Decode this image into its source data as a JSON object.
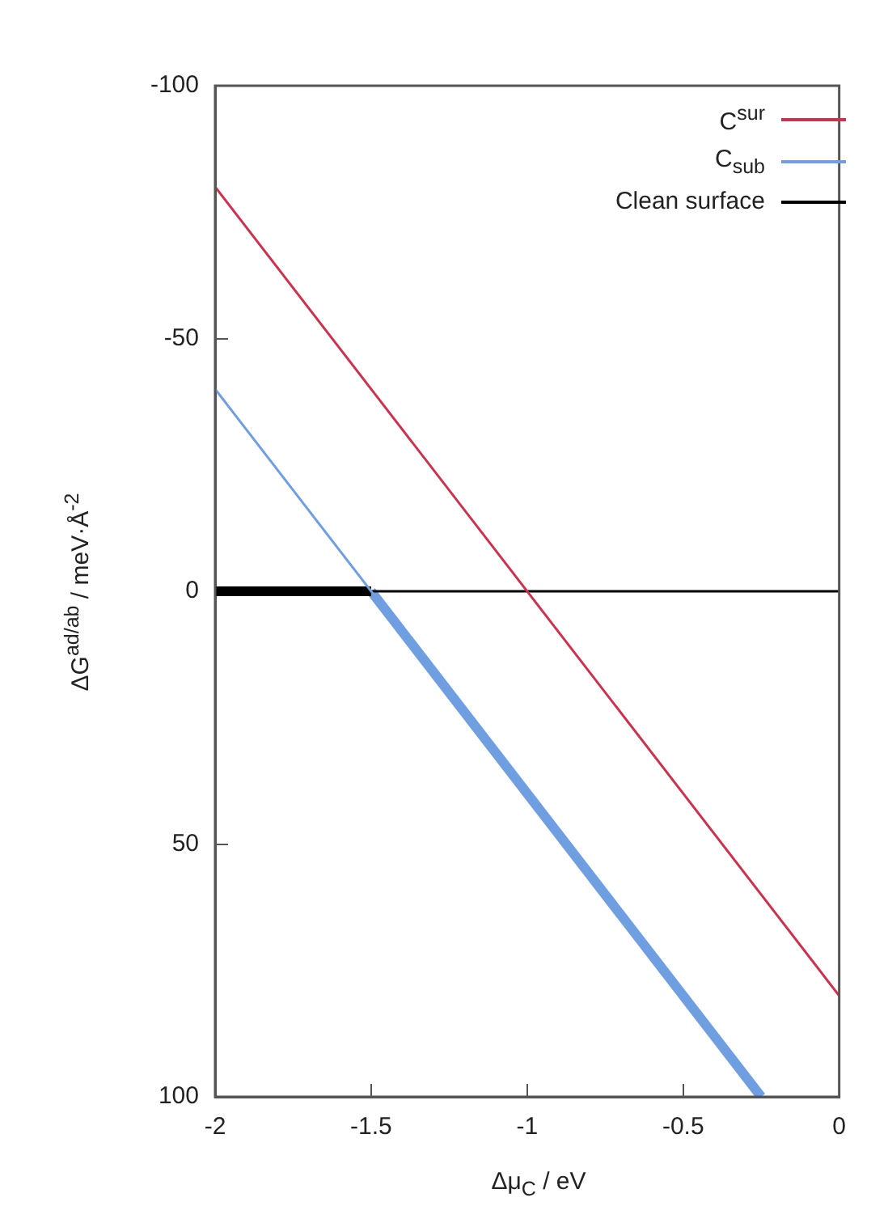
{
  "chart_data": {
    "type": "line",
    "xlabel": "Δμ$_{C}$ / eV",
    "ylabel": "ΔG$^{ad/ab}$ / meV·Å$^{-2}$",
    "xlim": [
      -2,
      0
    ],
    "xticks": [
      -2,
      -1.5,
      -1,
      -0.5,
      0
    ],
    "ylim": [
      100,
      -100
    ],
    "yticks": [
      -100,
      -50,
      0,
      50,
      100
    ],
    "grid": false,
    "legend": "top right",
    "marker": "none",
    "line_style": "solid",
    "series": [
      {
        "name": "C$^{sur}$",
        "color": "#c8344f",
        "x": [
          -2,
          0
        ],
        "values": [
          -80,
          80
        ]
      },
      {
        "name": "C$_{sub}$",
        "color": "#6f9fe0",
        "x": [
          -2,
          -0.25
        ],
        "values": [
          -40,
          100
        ]
      },
      {
        "name": "Clean surface",
        "color": "#000000",
        "x": [
          -2,
          0
        ],
        "values": [
          0,
          0
        ]
      },
      {
        "color": "#000000",
        "x": [
          -2,
          -1.5
        ],
        "values": [
          0,
          0
        ]
      },
      {
        "color": "#6f9fe0",
        "x": [
          -1.5,
          -0.25
        ],
        "values": [
          0,
          100
        ]
      }
    ]
  }
}
